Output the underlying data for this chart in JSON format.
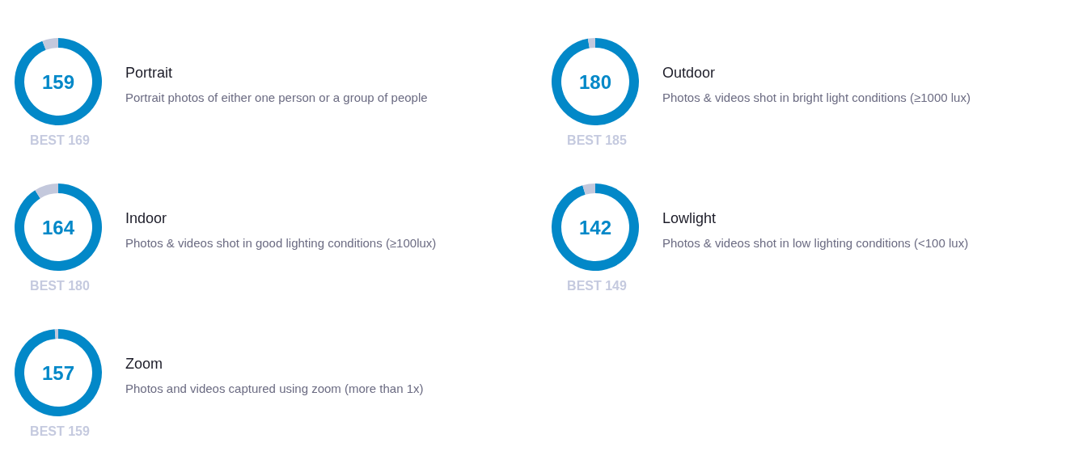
{
  "chart_data": [
    {
      "type": "donut",
      "title": "Portrait",
      "subtitle": "Portrait photos of either one person or a group of people",
      "categories": [
        null,
        null
      ],
      "values": [
        159,
        10
      ],
      "colors": [
        "#0288c8",
        "#c3c8dc"
      ],
      "value_labels": [
        "159",
        null
      ],
      "annotations": [
        "BEST 169"
      ]
    },
    {
      "type": "donut",
      "title": "Outdoor",
      "subtitle": "Photos & videos shot in bright light conditions (≥1000 lux)",
      "categories": [
        null,
        null
      ],
      "values": [
        180,
        5
      ],
      "colors": [
        "#0288c8",
        "#c3c8dc"
      ],
      "value_labels": [
        "180",
        null
      ],
      "annotations": [
        "BEST 185"
      ]
    },
    {
      "type": "donut",
      "title": "Indoor",
      "subtitle": "Photos & videos shot in good lighting conditions (≥100lux)",
      "categories": [
        null,
        null
      ],
      "values": [
        164,
        16
      ],
      "colors": [
        "#0288c8",
        "#c3c8dc"
      ],
      "value_labels": [
        "164",
        null
      ],
      "annotations": [
        "BEST 180"
      ]
    },
    {
      "type": "donut",
      "title": "Lowlight",
      "subtitle": "Photos & videos shot in low lighting conditions (<100 lux)",
      "categories": [
        null,
        null
      ],
      "values": [
        142,
        7
      ],
      "colors": [
        "#0288c8",
        "#c3c8dc"
      ],
      "value_labels": [
        "142",
        null
      ],
      "annotations": [
        "BEST 149"
      ]
    },
    {
      "type": "donut",
      "title": "Zoom",
      "subtitle": "Photos and videos captured using zoom (more than 1x)",
      "categories": [
        null,
        null
      ],
      "values": [
        157,
        2
      ],
      "colors": [
        "#0288c8",
        "#c3c8dc"
      ],
      "value_labels": [
        "157",
        null
      ],
      "annotations": [
        "BEST 159"
      ]
    }
  ]
}
